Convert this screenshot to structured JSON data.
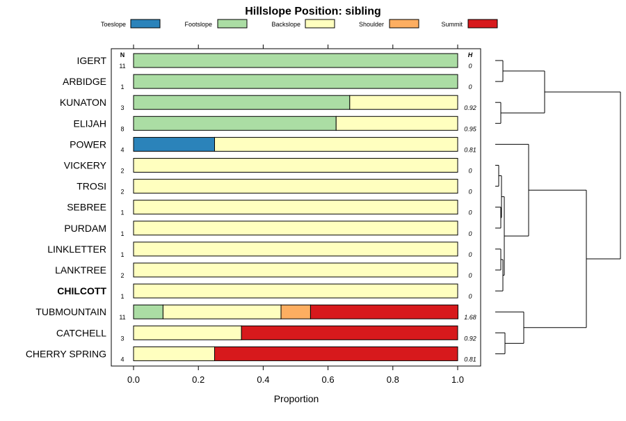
{
  "chart_data": {
    "type": "bar",
    "title": "Hillslope Position: sibling",
    "xlabel": "Proportion",
    "ylabel": "",
    "xlim": [
      0,
      1
    ],
    "x_ticks": [
      "0.0",
      "0.2",
      "0.4",
      "0.6",
      "0.8",
      "1.0"
    ],
    "stacked": true,
    "orientation": "horizontal",
    "n_header": "N",
    "h_header": "H",
    "legend_position": "top",
    "legend": [
      {
        "name": "Toeslope",
        "color": "#2b83ba"
      },
      {
        "name": "Footslope",
        "color": "#abdda4"
      },
      {
        "name": "Backslope",
        "color": "#ffffbf"
      },
      {
        "name": "Shoulder",
        "color": "#fdae61"
      },
      {
        "name": "Summit",
        "color": "#d7191c"
      }
    ],
    "rows": [
      {
        "label": "IGERT",
        "n": "11",
        "h": "0",
        "bold": false,
        "values": [
          0,
          1,
          0,
          0,
          0
        ]
      },
      {
        "label": "ARBIDGE",
        "n": "1",
        "h": "0",
        "bold": false,
        "values": [
          0,
          1,
          0,
          0,
          0
        ]
      },
      {
        "label": "KUNATON",
        "n": "3",
        "h": "0.92",
        "bold": false,
        "values": [
          0,
          0.667,
          0.333,
          0,
          0
        ]
      },
      {
        "label": "ELIJAH",
        "n": "8",
        "h": "0.95",
        "bold": false,
        "values": [
          0,
          0.625,
          0.375,
          0,
          0
        ]
      },
      {
        "label": "POWER",
        "n": "4",
        "h": "0.81",
        "bold": false,
        "values": [
          0.25,
          0,
          0.75,
          0,
          0
        ]
      },
      {
        "label": "VICKERY",
        "n": "2",
        "h": "0",
        "bold": false,
        "values": [
          0,
          0,
          1,
          0,
          0
        ]
      },
      {
        "label": "TROSI",
        "n": "2",
        "h": "0",
        "bold": false,
        "values": [
          0,
          0,
          1,
          0,
          0
        ]
      },
      {
        "label": "SEBREE",
        "n": "1",
        "h": "0",
        "bold": false,
        "values": [
          0,
          0,
          1,
          0,
          0
        ]
      },
      {
        "label": "PURDAM",
        "n": "1",
        "h": "0",
        "bold": false,
        "values": [
          0,
          0,
          1,
          0,
          0
        ]
      },
      {
        "label": "LINKLETTER",
        "n": "1",
        "h": "0",
        "bold": false,
        "values": [
          0,
          0,
          1,
          0,
          0
        ]
      },
      {
        "label": "LANKTREE",
        "n": "2",
        "h": "0",
        "bold": false,
        "values": [
          0,
          0,
          1,
          0,
          0
        ]
      },
      {
        "label": "CHILCOTT",
        "n": "1",
        "h": "0",
        "bold": true,
        "values": [
          0,
          0,
          1,
          0,
          0
        ]
      },
      {
        "label": "TUBMOUNTAIN",
        "n": "11",
        "h": "1.68",
        "bold": false,
        "values": [
          0,
          0.091,
          0.364,
          0.091,
          0.455
        ]
      },
      {
        "label": "CATCHELL",
        "n": "3",
        "h": "0.92",
        "bold": false,
        "values": [
          0,
          0,
          0.333,
          0,
          0.667
        ]
      },
      {
        "label": "CHERRY SPRING",
        "n": "4",
        "h": "0.81",
        "bold": false,
        "values": [
          0,
          0,
          0.25,
          0,
          0.75
        ]
      }
    ]
  }
}
